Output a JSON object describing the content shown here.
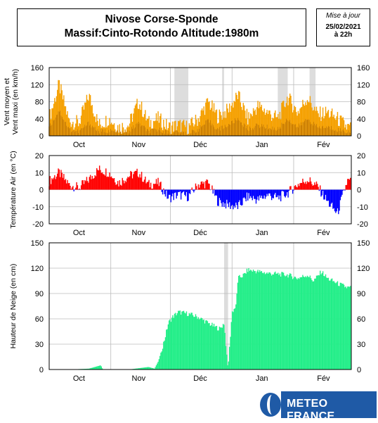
{
  "header": {
    "title_line1": "Nivose Corse-Sponde",
    "title_line2": "Massif:Cinto-Rotondo Altitude:1980m"
  },
  "update": {
    "label": "Mise à jour",
    "date": "25/02/2021",
    "time": "à 22h"
  },
  "logo": {
    "text": "METEO FRANCE"
  },
  "colors": {
    "wind": "#f5a000",
    "temp_pos": "#ff0000",
    "temp_neg": "#0000ff",
    "snow": "#22ee88",
    "missing": "#dddddd",
    "grid": "#bbbbbb"
  },
  "chart_data": [
    {
      "type": "area",
      "ylabel": "Vent moyen et Vent maxi (en km/h)",
      "ylim": [
        0,
        160
      ],
      "yticks": [
        0,
        40,
        80,
        120,
        160
      ],
      "x_tick_labels": [
        "Oct",
        "Nov",
        "Déc",
        "Jan",
        "Fév"
      ],
      "x_label_days": [
        15,
        45,
        76,
        107,
        138
      ],
      "grid": true,
      "missing_day_ranges": [
        [
          63,
          70
        ],
        [
          87,
          88
        ],
        [
          115,
          120
        ],
        [
          131,
          134
        ]
      ],
      "days": [
        0,
        5,
        10,
        15,
        20,
        25,
        30,
        35,
        40,
        45,
        50,
        55,
        60,
        65,
        70,
        75,
        80,
        85,
        90,
        95,
        100,
        105,
        110,
        115,
        120,
        125,
        130,
        135,
        140,
        145,
        150
      ],
      "series": [
        {
          "values": [
            40,
            120,
            35,
            30,
            95,
            25,
            40,
            20,
            25,
            80,
            30,
            40,
            20,
            25,
            20,
            40,
            80,
            45,
            60,
            95,
            40,
            70,
            55,
            40,
            90,
            55,
            90,
            50,
            55,
            40,
            20
          ]
        },
        {
          "values": [
            20,
            60,
            15,
            10,
            30,
            10,
            12,
            8,
            10,
            30,
            10,
            15,
            8,
            10,
            5,
            15,
            35,
            15,
            25,
            40,
            15,
            25,
            20,
            15,
            40,
            20,
            40,
            20,
            20,
            15,
            10
          ]
        }
      ]
    },
    {
      "type": "bar",
      "ylabel": "Température Air (en °C)",
      "ylim": [
        -20,
        20
      ],
      "yticks": [
        -20,
        -10,
        0,
        10,
        20
      ],
      "x_tick_labels": [
        "Oct",
        "Nov",
        "Déc",
        "Jan",
        "Fév"
      ],
      "x_label_days": [
        15,
        45,
        76,
        107,
        138
      ],
      "grid": true,
      "days": [
        0,
        5,
        10,
        15,
        20,
        25,
        30,
        35,
        40,
        45,
        50,
        55,
        60,
        65,
        70,
        75,
        80,
        85,
        90,
        95,
        100,
        105,
        110,
        115,
        120,
        125,
        130,
        135,
        140,
        145,
        150
      ],
      "values": [
        5,
        10,
        3,
        1,
        6,
        12,
        10,
        4,
        8,
        10,
        3,
        4,
        -5,
        -3,
        -4,
        3,
        4,
        -7,
        -9,
        -10,
        -4,
        -6,
        -3,
        -5,
        -2,
        3,
        6,
        2,
        -7,
        -14,
        5
      ]
    },
    {
      "type": "area",
      "ylabel": "Hauteur de Neige (en cm)",
      "ylim": [
        0,
        150
      ],
      "yticks": [
        0,
        30,
        60,
        90,
        120,
        150
      ],
      "x_tick_labels": [
        "Oct",
        "Nov",
        "Déc",
        "Jan",
        "Fév"
      ],
      "x_label_days": [
        15,
        45,
        76,
        107,
        138
      ],
      "grid": true,
      "missing_day_ranges": [
        [
          88,
          90
        ]
      ],
      "days": [
        0,
        10,
        20,
        26,
        27,
        40,
        50,
        53,
        55,
        58,
        60,
        62,
        65,
        70,
        75,
        80,
        84,
        86,
        88,
        90,
        92,
        94,
        95,
        98,
        100,
        110,
        120,
        125,
        130,
        133,
        135,
        137,
        140,
        145,
        150
      ],
      "values": [
        0,
        0,
        1,
        5,
        0,
        0,
        3,
        1,
        10,
        35,
        55,
        62,
        68,
        66,
        62,
        55,
        50,
        48,
        55,
        0,
        68,
        75,
        108,
        112,
        118,
        114,
        112,
        108,
        112,
        105,
        110,
        116,
        108,
        102,
        97
      ]
    }
  ]
}
